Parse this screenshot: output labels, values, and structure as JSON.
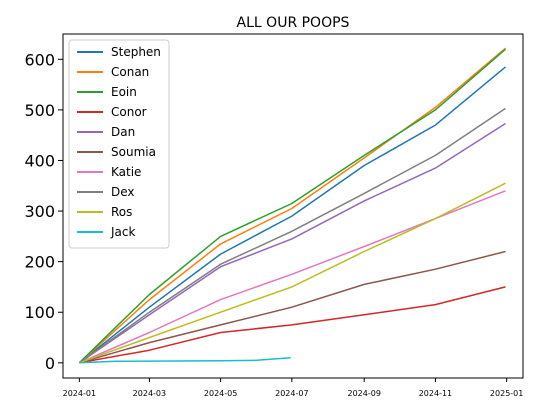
{
  "chart_data": {
    "type": "line",
    "title": "ALL OUR POOPS",
    "xlabel": "",
    "ylabel": "",
    "x_range": [
      "2023-12-18",
      "2025-01-15"
    ],
    "ylim": [
      -30,
      650
    ],
    "x_ticks": [
      "2024-01",
      "2024-03",
      "2024-05",
      "2024-07",
      "2024-09",
      "2024-11",
      "2025-01"
    ],
    "y_ticks": [
      0,
      100,
      200,
      300,
      400,
      500,
      600
    ],
    "grid": false,
    "legend": "top-left",
    "series": [
      {
        "name": "Stephen",
        "color": "#1f77b4",
        "points": [
          [
            "2024-01-01",
            0
          ],
          [
            "2024-03-01",
            110
          ],
          [
            "2024-05-01",
            215
          ],
          [
            "2024-07-01",
            290
          ],
          [
            "2024-09-01",
            390
          ],
          [
            "2024-11-01",
            470
          ],
          [
            "2024-12-31",
            585
          ]
        ]
      },
      {
        "name": "Conan",
        "color": "#ff7f0e",
        "points": [
          [
            "2024-01-01",
            0
          ],
          [
            "2024-03-01",
            125
          ],
          [
            "2024-05-01",
            235
          ],
          [
            "2024-07-01",
            305
          ],
          [
            "2024-09-01",
            405
          ],
          [
            "2024-11-01",
            505
          ],
          [
            "2024-12-31",
            622
          ]
        ]
      },
      {
        "name": "Eoin",
        "color": "#2ca02c",
        "points": [
          [
            "2024-01-01",
            0
          ],
          [
            "2024-03-01",
            135
          ],
          [
            "2024-05-01",
            250
          ],
          [
            "2024-07-01",
            315
          ],
          [
            "2024-09-01",
            410
          ],
          [
            "2024-11-01",
            500
          ],
          [
            "2024-12-31",
            620
          ]
        ]
      },
      {
        "name": "Conor",
        "color": "#d62728",
        "points": [
          [
            "2024-01-01",
            0
          ],
          [
            "2024-03-01",
            25
          ],
          [
            "2024-05-01",
            60
          ],
          [
            "2024-07-01",
            75
          ],
          [
            "2024-09-01",
            95
          ],
          [
            "2024-11-01",
            115
          ],
          [
            "2024-12-31",
            150
          ]
        ]
      },
      {
        "name": "Dan",
        "color": "#9467bd",
        "points": [
          [
            "2024-01-01",
            0
          ],
          [
            "2024-03-01",
            95
          ],
          [
            "2024-05-01",
            190
          ],
          [
            "2024-07-01",
            245
          ],
          [
            "2024-09-01",
            320
          ],
          [
            "2024-11-01",
            385
          ],
          [
            "2024-12-31",
            473
          ]
        ]
      },
      {
        "name": "Soumia",
        "color": "#8c564b",
        "points": [
          [
            "2024-01-01",
            0
          ],
          [
            "2024-03-01",
            40
          ],
          [
            "2024-05-01",
            75
          ],
          [
            "2024-07-01",
            110
          ],
          [
            "2024-09-01",
            155
          ],
          [
            "2024-11-01",
            185
          ],
          [
            "2024-12-31",
            220
          ]
        ]
      },
      {
        "name": "Katie",
        "color": "#e377c2",
        "points": [
          [
            "2024-01-01",
            0
          ],
          [
            "2024-03-01",
            60
          ],
          [
            "2024-05-01",
            125
          ],
          [
            "2024-07-01",
            175
          ],
          [
            "2024-09-01",
            230
          ],
          [
            "2024-11-01",
            285
          ],
          [
            "2024-12-31",
            340
          ]
        ]
      },
      {
        "name": "Dex",
        "color": "#7f7f7f",
        "points": [
          [
            "2024-01-01",
            0
          ],
          [
            "2024-03-01",
            100
          ],
          [
            "2024-05-01",
            195
          ],
          [
            "2024-07-01",
            260
          ],
          [
            "2024-09-01",
            335
          ],
          [
            "2024-11-01",
            410
          ],
          [
            "2024-12-31",
            503
          ]
        ]
      },
      {
        "name": "Ros",
        "color": "#bcbd22",
        "points": [
          [
            "2024-01-01",
            0
          ],
          [
            "2024-03-01",
            50
          ],
          [
            "2024-05-01",
            100
          ],
          [
            "2024-07-01",
            150
          ],
          [
            "2024-09-01",
            220
          ],
          [
            "2024-11-01",
            285
          ],
          [
            "2024-12-31",
            355
          ]
        ]
      },
      {
        "name": "Jack",
        "color": "#17becf",
        "points": [
          [
            "2024-01-01",
            0
          ],
          [
            "2024-02-01",
            3
          ],
          [
            "2024-05-01",
            4
          ],
          [
            "2024-06-01",
            5
          ],
          [
            "2024-06-30",
            10
          ]
        ]
      }
    ]
  }
}
